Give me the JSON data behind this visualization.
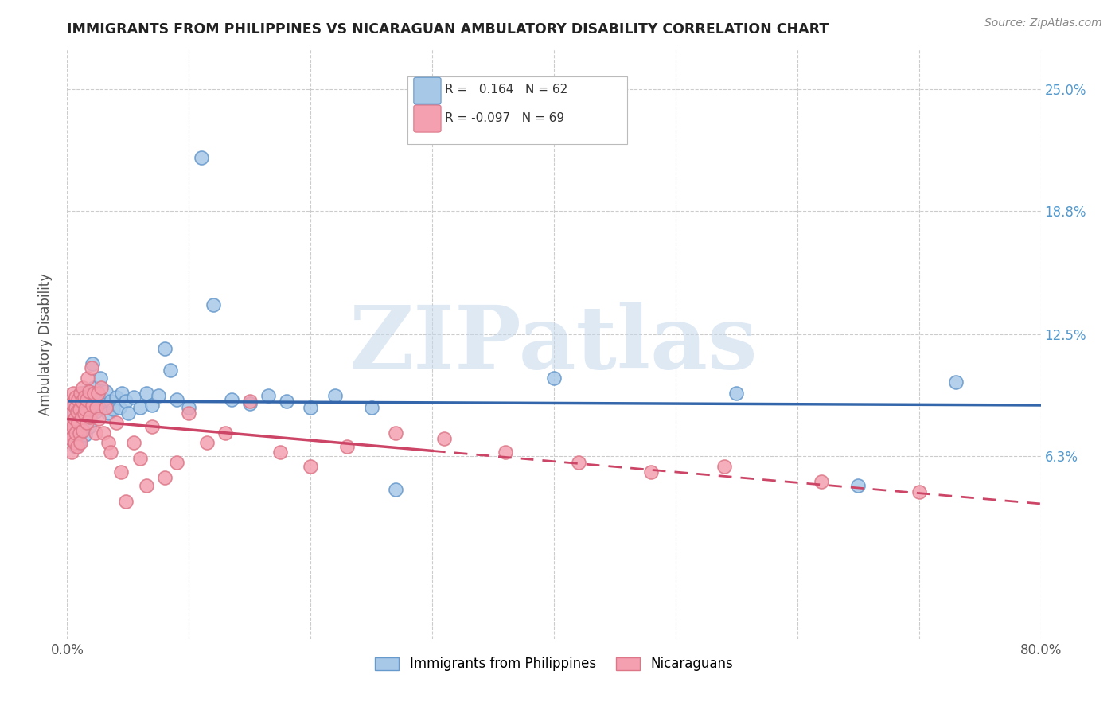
{
  "title": "IMMIGRANTS FROM PHILIPPINES VS NICARAGUAN AMBULATORY DISABILITY CORRELATION CHART",
  "source": "Source: ZipAtlas.com",
  "ylabel": "Ambulatory Disability",
  "legend1_label": "Immigrants from Philippines",
  "legend2_label": "Nicaraguans",
  "r1": 0.164,
  "n1": 62,
  "r2": -0.097,
  "n2": 69,
  "xlim": [
    0.0,
    0.8
  ],
  "ylim": [
    -0.03,
    0.27
  ],
  "yticks": [
    0.063,
    0.125,
    0.188,
    0.25
  ],
  "ytick_labels": [
    "6.3%",
    "12.5%",
    "18.8%",
    "25.0%"
  ],
  "xticks": [
    0.0,
    0.1,
    0.2,
    0.3,
    0.4,
    0.5,
    0.6,
    0.7,
    0.8
  ],
  "xtick_labels": [
    "0.0%",
    "",
    "",
    "",
    "",
    "",
    "",
    "",
    "80.0%"
  ],
  "color_blue": "#a8c8e8",
  "color_blue_edge": "#6699cc",
  "color_blue_line": "#3366aa",
  "color_pink": "#f4a0b0",
  "color_pink_edge": "#dd7788",
  "color_pink_line": "#cc4466",
  "watermark": "ZIPatlas",
  "background_color": "#ffffff",
  "grid_color": "#cccccc",
  "title_color": "#222222",
  "right_tick_color": "#5599cc",
  "scatter1_x": [
    0.002,
    0.003,
    0.004,
    0.005,
    0.005,
    0.006,
    0.007,
    0.008,
    0.008,
    0.009,
    0.01,
    0.01,
    0.011,
    0.012,
    0.013,
    0.014,
    0.015,
    0.015,
    0.016,
    0.017,
    0.018,
    0.019,
    0.02,
    0.021,
    0.022,
    0.023,
    0.025,
    0.027,
    0.028,
    0.03,
    0.032,
    0.034,
    0.036,
    0.038,
    0.04,
    0.043,
    0.045,
    0.048,
    0.05,
    0.055,
    0.06,
    0.065,
    0.07,
    0.075,
    0.08,
    0.085,
    0.09,
    0.1,
    0.11,
    0.12,
    0.135,
    0.15,
    0.165,
    0.18,
    0.2,
    0.22,
    0.25,
    0.27,
    0.4,
    0.55,
    0.65,
    0.73
  ],
  "scatter1_y": [
    0.075,
    0.08,
    0.072,
    0.085,
    0.078,
    0.09,
    0.068,
    0.082,
    0.076,
    0.088,
    0.071,
    0.093,
    0.086,
    0.079,
    0.095,
    0.083,
    0.091,
    0.074,
    0.087,
    0.096,
    0.078,
    0.092,
    0.084,
    0.11,
    0.098,
    0.086,
    0.094,
    0.103,
    0.088,
    0.092,
    0.096,
    0.085,
    0.091,
    0.087,
    0.093,
    0.088,
    0.095,
    0.091,
    0.085,
    0.093,
    0.088,
    0.095,
    0.089,
    0.094,
    0.118,
    0.107,
    0.092,
    0.088,
    0.215,
    0.14,
    0.092,
    0.09,
    0.094,
    0.091,
    0.088,
    0.094,
    0.088,
    0.046,
    0.103,
    0.095,
    0.048,
    0.101
  ],
  "scatter2_x": [
    0.001,
    0.002,
    0.003,
    0.003,
    0.004,
    0.004,
    0.005,
    0.005,
    0.006,
    0.006,
    0.007,
    0.007,
    0.007,
    0.008,
    0.008,
    0.009,
    0.009,
    0.01,
    0.01,
    0.011,
    0.011,
    0.012,
    0.012,
    0.013,
    0.013,
    0.014,
    0.014,
    0.015,
    0.016,
    0.016,
    0.017,
    0.018,
    0.019,
    0.02,
    0.021,
    0.022,
    0.023,
    0.024,
    0.025,
    0.026,
    0.028,
    0.03,
    0.032,
    0.034,
    0.036,
    0.04,
    0.044,
    0.048,
    0.055,
    0.06,
    0.065,
    0.07,
    0.08,
    0.09,
    0.1,
    0.115,
    0.13,
    0.15,
    0.175,
    0.2,
    0.23,
    0.27,
    0.31,
    0.36,
    0.42,
    0.48,
    0.54,
    0.62,
    0.7
  ],
  "scatter2_y": [
    0.075,
    0.08,
    0.072,
    0.085,
    0.065,
    0.09,
    0.078,
    0.095,
    0.082,
    0.07,
    0.088,
    0.075,
    0.093,
    0.068,
    0.086,
    0.08,
    0.092,
    0.075,
    0.087,
    0.07,
    0.095,
    0.083,
    0.091,
    0.076,
    0.098,
    0.085,
    0.093,
    0.087,
    0.08,
    0.092,
    0.103,
    0.096,
    0.083,
    0.108,
    0.089,
    0.095,
    0.075,
    0.088,
    0.095,
    0.082,
    0.098,
    0.075,
    0.088,
    0.07,
    0.065,
    0.08,
    0.055,
    0.04,
    0.07,
    0.062,
    0.048,
    0.078,
    0.052,
    0.06,
    0.085,
    0.07,
    0.075,
    0.091,
    0.065,
    0.058,
    0.068,
    0.075,
    0.072,
    0.065,
    0.06,
    0.055,
    0.058,
    0.05,
    0.045
  ]
}
